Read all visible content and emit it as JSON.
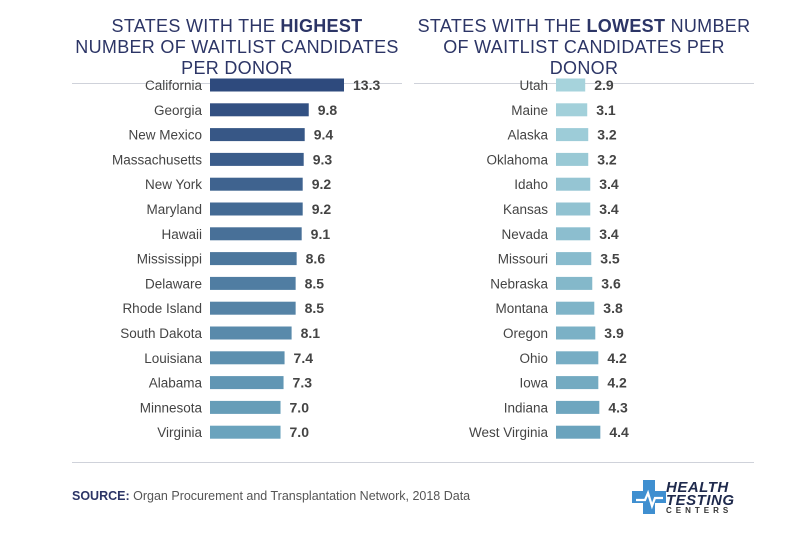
{
  "chart_data": [
    {
      "type": "bar",
      "orientation": "horizontal",
      "title_prefix": "States with the",
      "title_highlight": "highest",
      "title_suffix": "number of waitlist candidates per donor",
      "categories": [
        "California",
        "Georgia",
        "New Mexico",
        "Massachusetts",
        "New York",
        "Maryland",
        "Hawaii",
        "Mississippi",
        "Delaware",
        "Rhode Island",
        "South Dakota",
        "Louisiana",
        "Alabama",
        "Minnesota",
        "Virginia"
      ],
      "values": [
        13.3,
        9.8,
        9.4,
        9.3,
        9.2,
        9.2,
        9.1,
        8.6,
        8.5,
        8.5,
        8.1,
        7.4,
        7.3,
        7.0,
        7.0
      ],
      "value_labels": [
        "13.3",
        "9.8",
        "9.4",
        "9.3",
        "9.2",
        "9.2",
        "9.1",
        "8.6",
        "8.5",
        "8.5",
        "8.1",
        "7.4",
        "7.3",
        "7.0",
        "7.0"
      ],
      "xlim": [
        0,
        13.3
      ],
      "grid": false,
      "color_start": "#2e4a7d",
      "color_end": "#6aa3bd"
    },
    {
      "type": "bar",
      "orientation": "horizontal",
      "title_prefix": "States with the",
      "title_highlight": "lowest",
      "title_suffix": "number of waitlist candidates per donor",
      "categories": [
        "Utah",
        "Maine",
        "Alaska",
        "Oklahoma",
        "Idaho",
        "Kansas",
        "Nevada",
        "Missouri",
        "Nebraska",
        "Montana",
        "Oregon",
        "Ohio",
        "Iowa",
        "Indiana",
        "West Virginia"
      ],
      "values": [
        2.9,
        3.1,
        3.2,
        3.2,
        3.4,
        3.4,
        3.4,
        3.5,
        3.6,
        3.8,
        3.9,
        4.2,
        4.2,
        4.3,
        4.4
      ],
      "value_labels": [
        "2.9",
        "3.1",
        "3.2",
        "3.2",
        "3.4",
        "3.4",
        "3.4",
        "3.5",
        "3.6",
        "3.8",
        "3.9",
        "4.2",
        "4.2",
        "4.3",
        "4.4"
      ],
      "xlim": [
        0,
        13.3
      ],
      "grid": false,
      "color_start": "#a6d3dc",
      "color_end": "#6aa3bd"
    }
  ],
  "source": {
    "label": "SOURCE:",
    "text": "Organ Procurement and Transplantation Network, 2018 Data"
  },
  "logo": {
    "line1": "HEALTH",
    "line2": "TESTING",
    "line3": "CENTERS",
    "icon": "medical-cross-icon",
    "color_dark": "#1f2a4d",
    "color_light": "#3f8fd0"
  }
}
